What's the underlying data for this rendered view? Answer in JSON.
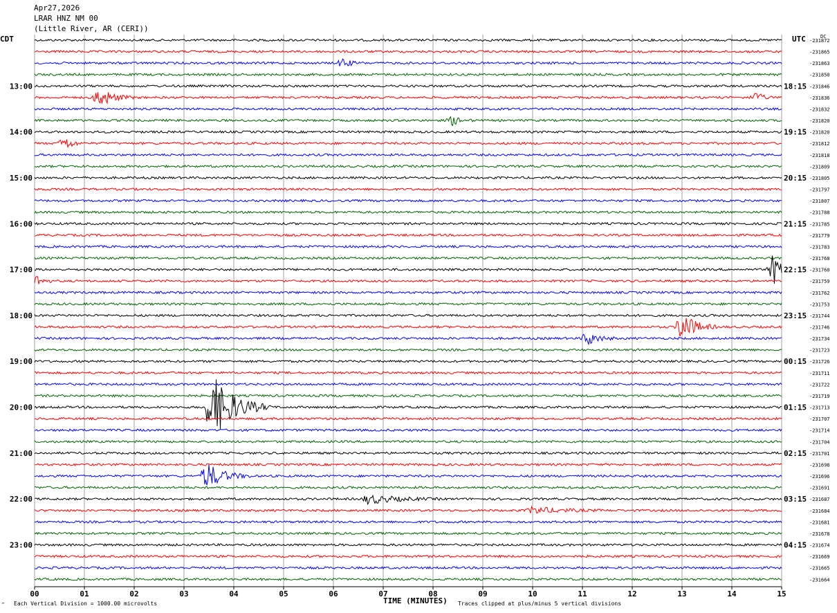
{
  "header": {
    "date": "Apr27,2026",
    "station": "LRAR HNZ NM 00",
    "location": "(Little River, AR (CERI))"
  },
  "left_label": "CDT",
  "right_label": "UTC",
  "dc_label": "DC",
  "footer": {
    "scale_note": "Each Vertical Division = 1000.00 microvolts",
    "clip_note": "Traces clipped at plus/minus 5 vertical divisions",
    "corner_mark": "‴"
  },
  "chart_data": {
    "type": "line",
    "title": "LRAR HNZ NM 00",
    "xlabel": "TIME (MINUTES)",
    "x_ticks": [
      "00",
      "01",
      "02",
      "03",
      "04",
      "05",
      "06",
      "07",
      "08",
      "09",
      "10",
      "11",
      "12",
      "13",
      "14",
      "15"
    ],
    "xlim": [
      0,
      15
    ],
    "trace_colors": [
      "#000000",
      "#ff0000",
      "#0000ff",
      "#006400"
    ],
    "left_time_labels": [
      {
        "row": 4,
        "label": "13:00"
      },
      {
        "row": 8,
        "label": "14:00"
      },
      {
        "row": 12,
        "label": "15:00"
      },
      {
        "row": 16,
        "label": "16:00"
      },
      {
        "row": 20,
        "label": "17:00"
      },
      {
        "row": 24,
        "label": "18:00"
      },
      {
        "row": 28,
        "label": "19:00"
      },
      {
        "row": 32,
        "label": "20:00"
      },
      {
        "row": 36,
        "label": "21:00"
      },
      {
        "row": 40,
        "label": "22:00"
      },
      {
        "row": 44,
        "label": "23:00"
      }
    ],
    "right_time_labels": [
      {
        "row": 4,
        "label": "18:15"
      },
      {
        "row": 8,
        "label": "19:15"
      },
      {
        "row": 12,
        "label": "20:15"
      },
      {
        "row": 16,
        "label": "21:15"
      },
      {
        "row": 20,
        "label": "22:15"
      },
      {
        "row": 24,
        "label": "23:15"
      },
      {
        "row": 28,
        "label": "00:15"
      },
      {
        "row": 32,
        "label": "01:15"
      },
      {
        "row": 36,
        "label": "02:15"
      },
      {
        "row": 40,
        "label": "03:15"
      },
      {
        "row": 44,
        "label": "04:15"
      }
    ],
    "dc_offsets": [
      "-231872",
      "-231865",
      "-231863",
      "-231850",
      "-231846",
      "-231836",
      "-231832",
      "-231820",
      "-231820",
      "-231812",
      "-231818",
      "-231809",
      "-231805",
      "-231797",
      "-231807",
      "-231788",
      "-231785",
      "-231779",
      "-231783",
      "-231768",
      "-231760",
      "-231759",
      "-231762",
      "-231753",
      "-231744",
      "-231746",
      "-231734",
      "-231723",
      "-231726",
      "-231711",
      "-231722",
      "-231719",
      "-231713",
      "-231707",
      "-231714",
      "-231704",
      "-231701",
      "-231698",
      "-231696",
      "-231691",
      "-231687",
      "-231684",
      "-231681",
      "-231678",
      "-231674",
      "-231669",
      "-231665",
      "-231664"
    ],
    "events": [
      {
        "row": 2,
        "minute": 6.2,
        "amplitude": 0.4,
        "duration": 0.4
      },
      {
        "row": 5,
        "minute": 1.3,
        "amplitude": 0.9,
        "duration": 0.7
      },
      {
        "row": 5,
        "minute": 14.5,
        "amplitude": 0.5,
        "duration": 0.3
      },
      {
        "row": 7,
        "minute": 8.4,
        "amplitude": 0.4,
        "duration": 0.4
      },
      {
        "row": 9,
        "minute": 0.6,
        "amplitude": 0.6,
        "duration": 0.4
      },
      {
        "row": 20,
        "minute": 14.85,
        "amplitude": 1.5,
        "duration": 0.3
      },
      {
        "row": 21,
        "minute": 0.05,
        "amplitude": 0.6,
        "duration": 0.3
      },
      {
        "row": 25,
        "minute": 13.0,
        "amplitude": 1.4,
        "duration": 0.7
      },
      {
        "row": 26,
        "minute": 11.1,
        "amplitude": 0.6,
        "duration": 0.6
      },
      {
        "row": 32,
        "minute": 3.55,
        "amplitude": 3.0,
        "duration": 1.2
      },
      {
        "row": 38,
        "minute": 3.45,
        "amplitude": 1.2,
        "duration": 0.9
      },
      {
        "row": 40,
        "minute": 6.7,
        "amplitude": 0.4,
        "duration": 1.5
      },
      {
        "row": 41,
        "minute": 10.0,
        "amplitude": 0.3,
        "duration": 1.5
      }
    ]
  }
}
